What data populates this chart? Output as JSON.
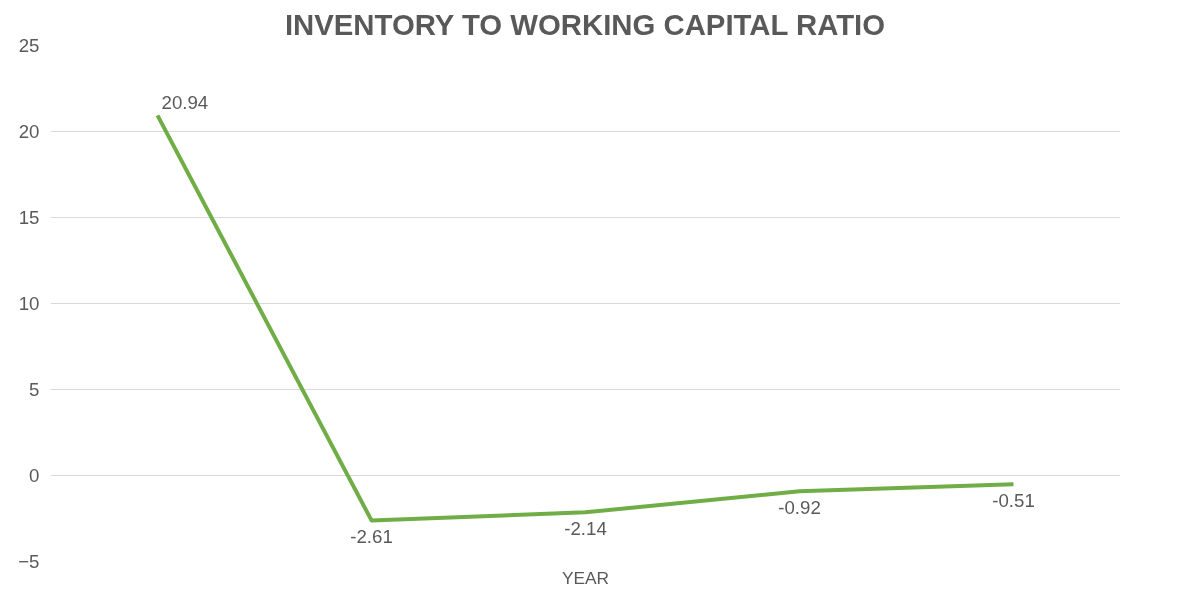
{
  "chart_data": {
    "type": "line",
    "title": "INVENTORY TO WORKING CAPITAL RATIO",
    "xlabel": "YEAR",
    "categories": [
      null,
      null,
      null,
      null,
      null
    ],
    "series": [
      {
        "color": "#70ad47",
        "values": [
          20.94,
          -2.61,
          -2.14,
          -0.92,
          -0.51
        ]
      }
    ],
    "ylim": [
      -5,
      25
    ],
    "yticks": [
      -5,
      0,
      5,
      10,
      15,
      20,
      25
    ],
    "grid": "y",
    "data_labels": true,
    "tick_labels": "y",
    "marker": "none",
    "line_style": "solid"
  }
}
